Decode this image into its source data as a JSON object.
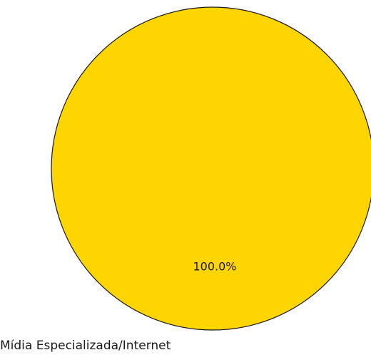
{
  "chart_data": {
    "type": "pie",
    "categories": [
      "Mídia Especializada/Internet"
    ],
    "values": [
      100
    ],
    "percent_labels": [
      "100.0%"
    ],
    "colors": [
      "#FFD500"
    ],
    "edge_color": "#1a1a1a"
  }
}
